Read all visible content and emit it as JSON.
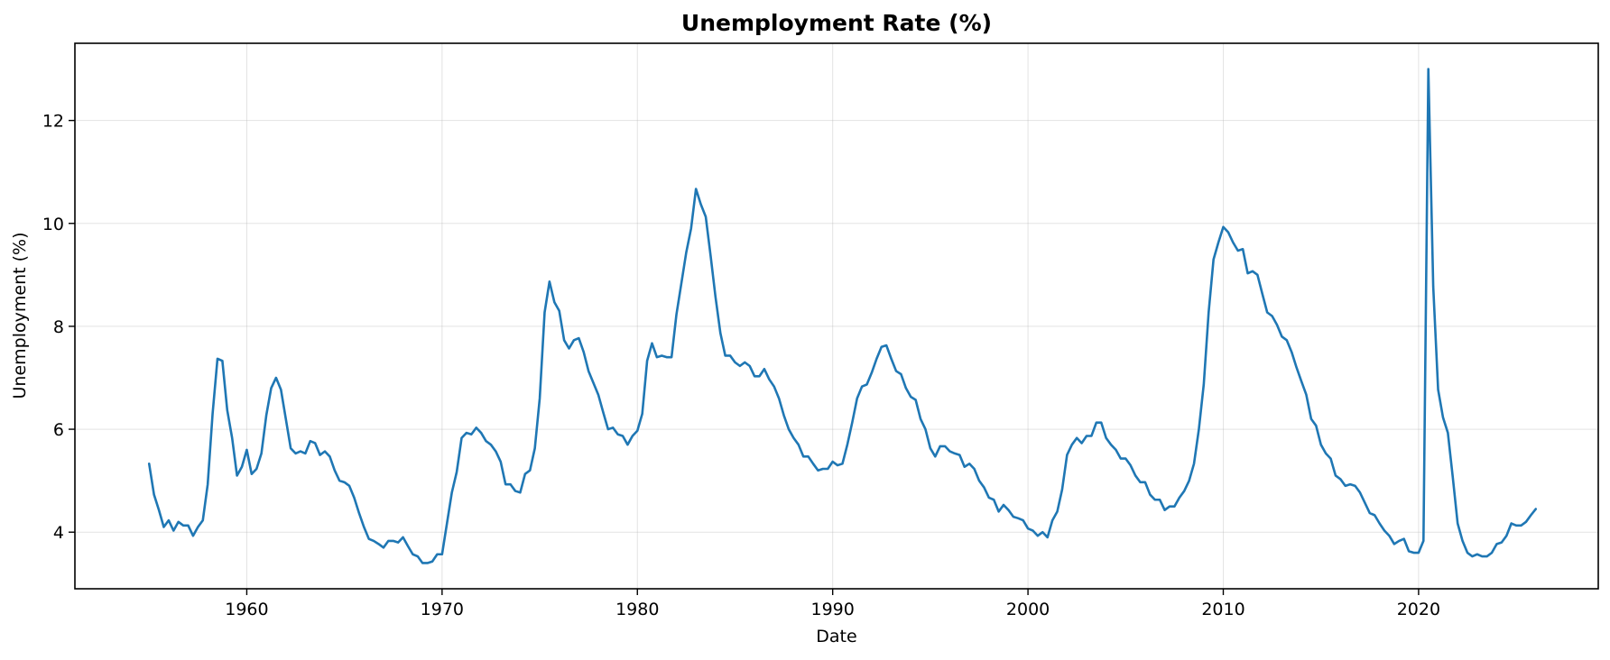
{
  "chart_data": {
    "type": "line",
    "title": "Unemployment Rate (%)",
    "xlabel": "Date",
    "ylabel": "Unemployment (%)",
    "xlim": [
      1951.2,
      2029.2
    ],
    "ylim": [
      2.9,
      13.5
    ],
    "x_ticks": [
      1960,
      1970,
      1980,
      1990,
      2000,
      2010,
      2020
    ],
    "x_tick_labels": [
      "1960",
      "1970",
      "1980",
      "1990",
      "2000",
      "2010",
      "2020"
    ],
    "y_ticks": [
      4,
      6,
      8,
      10,
      12
    ],
    "y_tick_labels": [
      "4",
      "6",
      "8",
      "10",
      "12"
    ],
    "grid": true,
    "legend": "none",
    "color": "#1f77b4",
    "series": [
      {
        "x": [
          1955.0,
          1955.25,
          1955.5,
          1955.75,
          1956.0,
          1956.25,
          1956.5,
          1956.75,
          1957.0,
          1957.25,
          1957.5,
          1957.75,
          1958.0,
          1958.25,
          1958.5,
          1958.75,
          1959.0,
          1959.25,
          1959.5,
          1959.75,
          1960.0,
          1960.25,
          1960.5,
          1960.75,
          1961.0,
          1961.25,
          1961.5,
          1961.75,
          1962.0,
          1962.25,
          1962.5,
          1962.75,
          1963.0,
          1963.25,
          1963.5,
          1963.75,
          1964.0,
          1964.25,
          1964.5,
          1964.75,
          1965.0,
          1965.25,
          1965.5,
          1965.75,
          1966.0,
          1966.25,
          1966.5,
          1966.75,
          1967.0,
          1967.25,
          1967.5,
          1967.75,
          1968.0,
          1968.25,
          1968.5,
          1968.75,
          1969.0,
          1969.25,
          1969.5,
          1969.75,
          1970.0,
          1970.25,
          1970.5,
          1970.75,
          1971.0,
          1971.25,
          1971.5,
          1971.75,
          1972.0,
          1972.25,
          1972.5,
          1972.75,
          1973.0,
          1973.25,
          1973.5,
          1973.75,
          1974.0,
          1974.25,
          1974.5,
          1974.75,
          1975.0,
          1975.25,
          1975.5,
          1975.75,
          1976.0,
          1976.25,
          1976.5,
          1976.75,
          1977.0,
          1977.25,
          1977.5,
          1977.75,
          1978.0,
          1978.25,
          1978.5,
          1978.75,
          1979.0,
          1979.25,
          1979.5,
          1979.75,
          1980.0,
          1980.25,
          1980.5,
          1980.75,
          1981.0,
          1981.25,
          1981.5,
          1981.75,
          1982.0,
          1982.25,
          1982.5,
          1982.75,
          1983.0,
          1983.25,
          1983.5,
          1983.75,
          1984.0,
          1984.25,
          1984.5,
          1984.75,
          1985.0,
          1985.25,
          1985.5,
          1985.75,
          1986.0,
          1986.25,
          1986.5,
          1986.75,
          1987.0,
          1987.25,
          1987.5,
          1987.75,
          1988.0,
          1988.25,
          1988.5,
          1988.75,
          1989.0,
          1989.25,
          1989.5,
          1989.75,
          1990.0,
          1990.25,
          1990.5,
          1990.75,
          1991.0,
          1991.25,
          1991.5,
          1991.75,
          1992.0,
          1992.25,
          1992.5,
          1992.75,
          1993.0,
          1993.25,
          1993.5,
          1993.75,
          1994.0,
          1994.25,
          1994.5,
          1994.75,
          1995.0,
          1995.25,
          1995.5,
          1995.75,
          1996.0,
          1996.25,
          1996.5,
          1996.75,
          1997.0,
          1997.25,
          1997.5,
          1997.75,
          1998.0,
          1998.25,
          1998.5,
          1998.75,
          1999.0,
          1999.25,
          1999.5,
          1999.75,
          2000.0,
          2000.25,
          2000.5,
          2000.75,
          2001.0,
          2001.25,
          2001.5,
          2001.75,
          2002.0,
          2002.25,
          2002.5,
          2002.75,
          2003.0,
          2003.25,
          2003.5,
          2003.75,
          2004.0,
          2004.25,
          2004.5,
          2004.75,
          2005.0,
          2005.25,
          2005.5,
          2005.75,
          2006.0,
          2006.25,
          2006.5,
          2006.75,
          2007.0,
          2007.25,
          2007.5,
          2007.75,
          2008.0,
          2008.25,
          2008.5,
          2008.75,
          2009.0,
          2009.25,
          2009.5,
          2009.75,
          2010.0,
          2010.25,
          2010.5,
          2010.75,
          2011.0,
          2011.25,
          2011.5,
          2011.75,
          2012.0,
          2012.25,
          2012.5,
          2012.75,
          2013.0,
          2013.25,
          2013.5,
          2013.75,
          2014.0,
          2014.25,
          2014.5,
          2014.75,
          2015.0,
          2015.25,
          2015.5,
          2015.75,
          2016.0,
          2016.25,
          2016.5,
          2016.75,
          2017.0,
          2017.25,
          2017.5,
          2017.75,
          2018.0,
          2018.25,
          2018.5,
          2018.75,
          2019.0,
          2019.25,
          2019.5,
          2019.75,
          2020.0,
          2020.25,
          2020.5,
          2020.75,
          2021.0,
          2021.25,
          2021.5,
          2021.75,
          2022.0,
          2022.25,
          2022.5,
          2022.75,
          2023.0,
          2023.25,
          2023.5,
          2023.75,
          2024.0,
          2024.25,
          2024.5,
          2024.75,
          2025.0,
          2025.25,
          2025.5,
          2025.75,
          2026.0
        ],
        "y": [
          5.33,
          4.73,
          4.43,
          4.1,
          4.23,
          4.03,
          4.2,
          4.13,
          4.13,
          3.93,
          4.1,
          4.23,
          4.93,
          6.3,
          7.37,
          7.33,
          6.37,
          5.83,
          5.1,
          5.27,
          5.6,
          5.13,
          5.23,
          5.53,
          6.27,
          6.8,
          7.0,
          6.77,
          6.2,
          5.63,
          5.53,
          5.57,
          5.53,
          5.77,
          5.73,
          5.5,
          5.57,
          5.47,
          5.2,
          5.0,
          4.97,
          4.9,
          4.67,
          4.37,
          4.1,
          3.87,
          3.83,
          3.77,
          3.7,
          3.83,
          3.83,
          3.8,
          3.9,
          3.73,
          3.57,
          3.53,
          3.4,
          3.4,
          3.43,
          3.57,
          3.57,
          4.17,
          4.77,
          5.17,
          5.83,
          5.93,
          5.9,
          6.03,
          5.93,
          5.77,
          5.7,
          5.57,
          5.37,
          4.93,
          4.93,
          4.8,
          4.77,
          5.13,
          5.2,
          5.63,
          6.6,
          8.27,
          8.87,
          8.47,
          8.3,
          7.73,
          7.57,
          7.73,
          7.77,
          7.5,
          7.13,
          6.9,
          6.67,
          6.33,
          6.0,
          6.03,
          5.9,
          5.87,
          5.7,
          5.87,
          5.97,
          6.3,
          7.33,
          7.67,
          7.4,
          7.43,
          7.4,
          7.4,
          8.23,
          8.83,
          9.43,
          9.9,
          10.67,
          10.37,
          10.13,
          9.37,
          8.57,
          7.87,
          7.43,
          7.43,
          7.3,
          7.23,
          7.3,
          7.23,
          7.03,
          7.03,
          7.17,
          6.97,
          6.83,
          6.6,
          6.27,
          6.0,
          5.83,
          5.7,
          5.47,
          5.47,
          5.33,
          5.2,
          5.23,
          5.23,
          5.37,
          5.3,
          5.33,
          5.7,
          6.13,
          6.6,
          6.83,
          6.87,
          7.1,
          7.37,
          7.6,
          7.63,
          7.37,
          7.13,
          7.07,
          6.8,
          6.63,
          6.57,
          6.2,
          6.0,
          5.63,
          5.47,
          5.67,
          5.67,
          5.57,
          5.53,
          5.5,
          5.27,
          5.33,
          5.23,
          5.0,
          4.87,
          4.67,
          4.63,
          4.4,
          4.53,
          4.43,
          4.3,
          4.27,
          4.23,
          4.07,
          4.03,
          3.93,
          4.0,
          3.9,
          4.23,
          4.4,
          4.83,
          5.5,
          5.7,
          5.83,
          5.73,
          5.87,
          5.87,
          6.13,
          6.13,
          5.83,
          5.7,
          5.6,
          5.43,
          5.43,
          5.3,
          5.1,
          4.97,
          4.97,
          4.73,
          4.63,
          4.63,
          4.43,
          4.5,
          4.5,
          4.67,
          4.8,
          5.0,
          5.33,
          6.0,
          6.87,
          8.27,
          9.3,
          9.63,
          9.93,
          9.83,
          9.63,
          9.47,
          9.5,
          9.03,
          9.07,
          9.0,
          8.63,
          8.27,
          8.2,
          8.03,
          7.8,
          7.73,
          7.5,
          7.2,
          6.93,
          6.67,
          6.2,
          6.07,
          5.7,
          5.53,
          5.43,
          5.1,
          5.03,
          4.9,
          4.93,
          4.9,
          4.77,
          4.57,
          4.37,
          4.33,
          4.17,
          4.03,
          3.93,
          3.77,
          3.83,
          3.87,
          3.63,
          3.6,
          3.6,
          3.83,
          13.0,
          8.77,
          6.77,
          6.23,
          5.93,
          5.07,
          4.17,
          3.83,
          3.6,
          3.53,
          3.57,
          3.53,
          3.53,
          3.6,
          3.77,
          3.8,
          3.93,
          4.17,
          4.13,
          4.13,
          4.2,
          4.33,
          4.45
        ]
      }
    ]
  }
}
